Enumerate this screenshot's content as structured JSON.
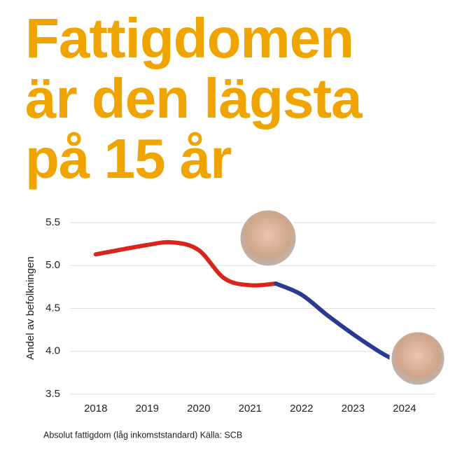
{
  "chart_data": {
    "type": "line",
    "title": [
      "Fattigdomen",
      "är den lägsta",
      "på 15 år"
    ],
    "y_label": "Andel av befolkningen",
    "footnote": "Absolut fattigdom (låg inkomststandard) Källa: SCB",
    "x": [
      2018,
      2019,
      2019.5,
      2020,
      2020.5,
      2021,
      2021.5,
      2022,
      2022.5,
      2023,
      2023.5,
      2023.8
    ],
    "series": [
      {
        "color": "#d7261d",
        "values": [
          5.13,
          5.24,
          5.27,
          5.18,
          4.85,
          4.77,
          4.79,
          null,
          null,
          null,
          null,
          null
        ]
      },
      {
        "color": "#2b3990",
        "values": [
          null,
          null,
          null,
          null,
          null,
          null,
          4.79,
          4.66,
          4.42,
          4.2,
          4.0,
          3.9
        ]
      }
    ],
    "xlim": [
      2017.5,
      2024.6
    ],
    "xticks": [
      2018,
      2019,
      2020,
      2021,
      2022,
      2023,
      2024
    ],
    "ylim": [
      3.5,
      5.5
    ],
    "yticks": [
      3.5,
      {
        "value": 4,
        "label": "4.0"
      },
      4.5,
      {
        "value": 5,
        "label": "5.0"
      },
      5.5
    ],
    "grid": true
  }
}
